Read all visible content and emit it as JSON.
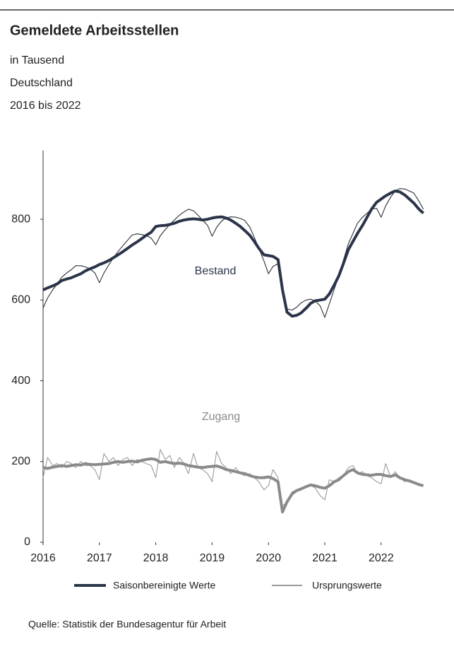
{
  "chart_data": {
    "type": "line",
    "title": "Gemeldete Arbeitsstellen",
    "subtitle": [
      "in Tausend",
      "Deutschland",
      "2016 bis 2022"
    ],
    "source": "Quelle: Statistik der Bundesagentur für Arbeit",
    "legend": [
      {
        "name": "Saisonbereinigte Werte",
        "color": "#2b3449"
      },
      {
        "name": "Ursprungswerte",
        "color": "#333333"
      }
    ],
    "x": [
      2016.0,
      2016.08,
      2016.17,
      2016.25,
      2016.33,
      2016.42,
      2016.5,
      2016.58,
      2016.67,
      2016.75,
      2016.83,
      2016.92,
      2017.0,
      2017.08,
      2017.17,
      2017.25,
      2017.33,
      2017.42,
      2017.5,
      2017.58,
      2017.67,
      2017.75,
      2017.83,
      2017.92,
      2018.0,
      2018.08,
      2018.17,
      2018.25,
      2018.33,
      2018.42,
      2018.5,
      2018.58,
      2018.67,
      2018.75,
      2018.83,
      2018.92,
      2019.0,
      2019.08,
      2019.17,
      2019.25,
      2019.33,
      2019.42,
      2019.5,
      2019.58,
      2019.67,
      2019.75,
      2019.83,
      2019.92,
      2020.0,
      2020.08,
      2020.17,
      2020.25,
      2020.33,
      2020.42,
      2020.5,
      2020.58,
      2020.67,
      2020.75,
      2020.83,
      2020.92,
      2021.0,
      2021.08,
      2021.17,
      2021.25,
      2021.33,
      2021.42,
      2021.5,
      2021.58,
      2021.67,
      2021.75,
      2021.83,
      2021.92,
      2022.0,
      2022.08,
      2022.17,
      2022.25,
      2022.33,
      2022.42,
      2022.5,
      2022.58,
      2022.67,
      2022.75
    ],
    "series": [
      {
        "name": "Bestand",
        "color": "#2b3449",
        "raw_color": "#2a2f3a",
        "values": [
          625,
          630,
          635,
          640,
          648,
          652,
          655,
          660,
          665,
          672,
          677,
          682,
          688,
          692,
          698,
          705,
          712,
          720,
          728,
          736,
          744,
          752,
          760,
          768,
          782,
          784,
          785,
          787,
          790,
          795,
          798,
          800,
          801,
          800,
          798,
          800,
          803,
          805,
          806,
          803,
          798,
          790,
          782,
          772,
          760,
          745,
          728,
          712,
          710,
          708,
          700,
          625,
          570,
          560,
          562,
          568,
          580,
          592,
          598,
          600,
          602,
          615,
          638,
          660,
          690,
          725,
          745,
          765,
          785,
          805,
          825,
          842,
          850,
          858,
          865,
          870,
          868,
          860,
          850,
          840,
          825,
          815
        ],
        "raw_values": [
          580,
          605,
          625,
          640,
          656,
          667,
          675,
          685,
          685,
          682,
          677,
          667,
          643,
          667,
          688,
          705,
          720,
          735,
          748,
          761,
          764,
          762,
          760,
          753,
          737,
          759,
          775,
          787,
          798,
          810,
          818,
          825,
          821,
          810,
          798,
          785,
          758,
          780,
          796,
          803,
          806,
          805,
          802,
          797,
          780,
          755,
          728,
          697,
          665,
          683,
          690,
          625,
          578,
          575,
          582,
          593,
          600,
          602,
          598,
          585,
          557,
          590,
          628,
          660,
          698,
          740,
          765,
          790,
          805,
          815,
          825,
          827,
          805,
          833,
          855,
          870,
          876,
          875,
          870,
          865,
          845,
          825
        ]
      },
      {
        "name": "Zugang",
        "color": "#8a8a8a",
        "raw_color": "#9a9a9a",
        "values": [
          185,
          183,
          186,
          188,
          190,
          188,
          190,
          192,
          191,
          195,
          193,
          192,
          193,
          194,
          195,
          198,
          200,
          198,
          200,
          201,
          199,
          203,
          205,
          207,
          205,
          198,
          200,
          197,
          195,
          196,
          194,
          190,
          188,
          186,
          185,
          187,
          188,
          189,
          185,
          180,
          178,
          175,
          172,
          170,
          165,
          162,
          160,
          160,
          162,
          158,
          150,
          75,
          100,
          120,
          128,
          132,
          138,
          142,
          140,
          136,
          134,
          140,
          150,
          155,
          165,
          175,
          180,
          172,
          168,
          167,
          166,
          168,
          168,
          165,
          163,
          167,
          160,
          155,
          152,
          148,
          143,
          140
        ],
        "raw_values": [
          160,
          210,
          190,
          195,
          185,
          200,
          195,
          185,
          200,
          190,
          190,
          180,
          155,
          220,
          200,
          210,
          190,
          205,
          210,
          190,
          205,
          200,
          195,
          190,
          160,
          230,
          205,
          215,
          185,
          210,
          195,
          170,
          220,
          185,
          180,
          170,
          150,
          225,
          195,
          185,
          170,
          185,
          170,
          165,
          170,
          160,
          150,
          130,
          140,
          180,
          160,
          90,
          100,
          125,
          130,
          135,
          140,
          140,
          135,
          115,
          105,
          155,
          150,
          160,
          165,
          185,
          190,
          170,
          175,
          165,
          160,
          150,
          145,
          195,
          160,
          175,
          160,
          150,
          155,
          150,
          145,
          140
        ]
      }
    ],
    "xlim": [
      2016,
      2022.85
    ],
    "xticks": [
      2016,
      2017,
      2018,
      2019,
      2020,
      2021,
      2022
    ],
    "ylim": [
      0,
      970
    ],
    "yticks": [
      0,
      200,
      400,
      600,
      800
    ]
  }
}
